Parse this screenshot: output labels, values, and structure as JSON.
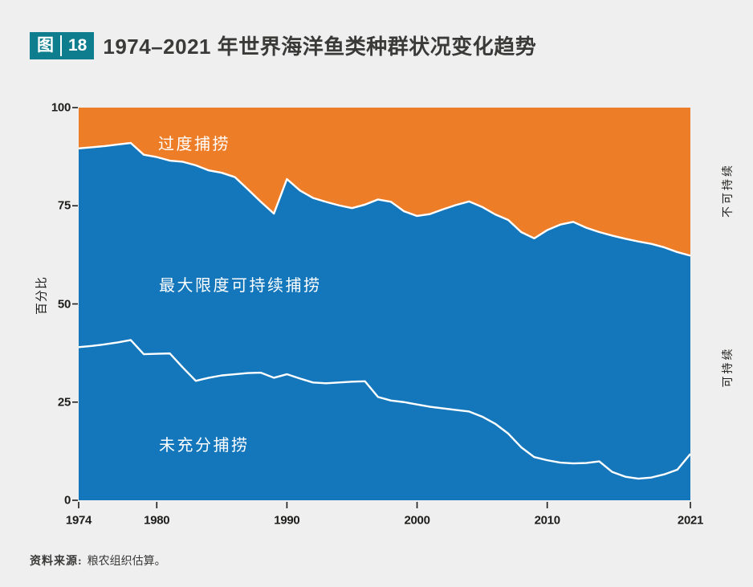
{
  "header": {
    "badge_label": "图",
    "badge_number": "18",
    "title": "1974–2021 年世界海洋鱼类种群状况变化趋势"
  },
  "chart": {
    "y_axis_title": "百分比",
    "y_ticks": [
      "100",
      "75",
      "50",
      "25",
      "0"
    ],
    "x_ticks": [
      "1974",
      "1980",
      "1990",
      "2000",
      "2010",
      "2021"
    ],
    "area_labels": {
      "overfished": "过度捕捞",
      "max_sustainable": "最大限度可持续捕捞",
      "underfished": "未充分捕捞"
    },
    "right_labels": {
      "unsustainable": "不可持续",
      "sustainable": "可持续"
    },
    "colors": {
      "overfished_orange": "#ee7d28",
      "sustainable_blue": "#1477bc",
      "divider_white": "#ffffff",
      "axis_ink": "#1d1d1b",
      "badge_teal": "#0e7e8e",
      "page_background": "#efefef"
    }
  },
  "chart_data": {
    "type": "area",
    "stacked": true,
    "title": "1974–2021 年世界海洋鱼类种群状况变化趋势",
    "ylabel": "百分比",
    "ylim": [
      0,
      100
    ],
    "x_range": [
      1974,
      2021
    ],
    "x_tick_years": [
      1974,
      1980,
      1990,
      2000,
      2010,
      2021
    ],
    "y_tick_values": [
      0,
      25,
      50,
      75,
      100
    ],
    "legend_position": "in-plot labels",
    "grid": false,
    "x": [
      1974,
      1975,
      1976,
      1977,
      1978,
      1979,
      1980,
      1981,
      1982,
      1983,
      1984,
      1985,
      1986,
      1987,
      1988,
      1989,
      1990,
      1991,
      1992,
      1993,
      1994,
      1995,
      1996,
      1997,
      1998,
      1999,
      2000,
      2001,
      2002,
      2003,
      2004,
      2005,
      2006,
      2007,
      2008,
      2009,
      2010,
      2011,
      2012,
      2013,
      2014,
      2015,
      2016,
      2017,
      2018,
      2019,
      2020,
      2021
    ],
    "series": [
      {
        "name": "未充分捕捞",
        "values": [
          39.0,
          39.3,
          39.7,
          40.2,
          40.8,
          37.2,
          37.3,
          37.4,
          33.8,
          30.4,
          31.2,
          31.8,
          32.1,
          32.4,
          32.5,
          31.2,
          32.1,
          31.0,
          30.0,
          29.8,
          30.0,
          30.2,
          30.3,
          26.3,
          25.4,
          25.0,
          24.4,
          23.8,
          23.4,
          23.0,
          22.6,
          21.3,
          19.5,
          17.0,
          13.5,
          11.0,
          10.2,
          9.6,
          9.4,
          9.5,
          9.9,
          7.2,
          6.0,
          5.5,
          5.8,
          6.6,
          7.8,
          11.8
        ]
      },
      {
        "name": "最大限度可持续捕捞",
        "values": [
          50.6,
          50.6,
          50.5,
          50.4,
          50.2,
          50.8,
          50.1,
          49.1,
          52.4,
          54.9,
          52.8,
          51.6,
          50.2,
          46.8,
          43.5,
          41.8,
          49.7,
          47.9,
          47.0,
          46.2,
          45.1,
          44.2,
          45.0,
          50.3,
          50.6,
          48.6,
          48.0,
          49.1,
          50.7,
          52.2,
          53.5,
          53.4,
          53.3,
          54.4,
          54.8,
          55.7,
          58.6,
          60.6,
          61.5,
          59.9,
          58.4,
          60.2,
          60.6,
          60.4,
          59.5,
          57.8,
          55.4,
          50.5
        ]
      },
      {
        "name": "过度捕捞",
        "values": [
          10.4,
          10.1,
          9.8,
          9.4,
          9.0,
          12.0,
          12.6,
          13.5,
          13.8,
          14.7,
          16.0,
          16.6,
          17.7,
          20.8,
          24.0,
          27.0,
          18.2,
          21.1,
          23.0,
          24.0,
          24.9,
          25.6,
          24.7,
          23.4,
          24.0,
          26.4,
          27.6,
          27.1,
          25.9,
          24.8,
          23.9,
          25.3,
          27.2,
          28.6,
          31.7,
          33.3,
          31.2,
          29.8,
          29.1,
          30.6,
          31.7,
          32.6,
          33.4,
          34.1,
          34.7,
          35.6,
          36.8,
          37.7
        ]
      }
    ]
  },
  "footer": {
    "source_label": "资料来源:",
    "source_text": "粮农组织估算。"
  }
}
